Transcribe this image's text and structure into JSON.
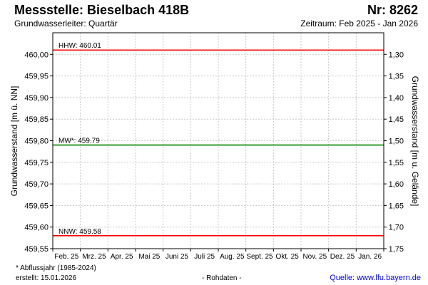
{
  "header": {
    "title": "Messstelle: Bieselbach 418B",
    "number": "Nr: 8262",
    "aquifer": "Grundwasserleiter: Quartär",
    "period": "Zeitraum: Feb 2025 - Jan 2026"
  },
  "footer": {
    "footnote": "* Abflussjahr (1985-2024)",
    "created": "erstellt:  15.01.2026",
    "raw": "- Rohdaten -",
    "source": "Quelle: www.lfu.bayern.de"
  },
  "chart_data": {
    "type": "line",
    "ylabel": "Grundwasserstand [m ü. NN]",
    "ylabel_right": "Grundwasserstand [m u. Gelände]",
    "xlabels": [
      "Feb. 25",
      "Mrz. 25",
      "Apr. 25",
      "Mai 25",
      "Juni 25",
      "Juli 25",
      "Aug. 25",
      "Sept. 25",
      "Okt. 25",
      "Nov. 25",
      "Dez. 25",
      "Jan. 26"
    ],
    "ylim": [
      459.55,
      460.05
    ],
    "yticks": [
      "460,00",
      "459,95",
      "459,90",
      "459,85",
      "459,80",
      "459,75",
      "459,70",
      "459,65",
      "459,60",
      "459,55"
    ],
    "yticks_right": [
      "1,30",
      "1,35",
      "1,40",
      "1,45",
      "1,50",
      "1,55",
      "1,60",
      "1,65",
      "1,70",
      "1,75"
    ],
    "grid": true,
    "reference_lines": [
      {
        "label": "HHW: 460.01",
        "value": 460.01,
        "color": "#ff0000"
      },
      {
        "label": "MW*: 459.79",
        "value": 459.79,
        "color": "#008000"
      },
      {
        "label": "NNW: 459.58",
        "value": 459.58,
        "color": "#ff0000"
      }
    ],
    "series": []
  }
}
